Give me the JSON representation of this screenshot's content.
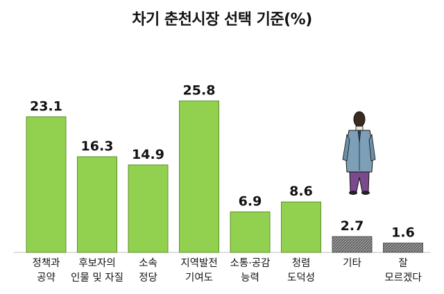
{
  "chart_data": {
    "type": "bar",
    "title": "차기 춘천시장 선택 기준(%)",
    "categories": [
      [
        "정책과",
        "공약"
      ],
      [
        "후보자의",
        "인물 및 자질"
      ],
      [
        "소속",
        "정당"
      ],
      [
        "지역발전",
        "기여도"
      ],
      [
        "소통·공감",
        "능력"
      ],
      [
        "청렴",
        "도덕성"
      ],
      [
        "기타"
      ],
      [
        "잘",
        "모르겠다"
      ]
    ],
    "values": [
      23.1,
      16.3,
      14.9,
      25.8,
      6.9,
      8.6,
      2.7,
      1.6
    ],
    "value_labels": [
      "23.1",
      "16.3",
      "14.9",
      "25.8",
      "6.9",
      "8.6",
      "2.7",
      "1.6"
    ],
    "ylim": [
      0,
      30
    ],
    "grid": false,
    "legend": "none",
    "colors": {
      "bar_main": "#92d050",
      "bar_border": "#5f8f2a",
      "bar_minor": "#8c8c8c",
      "bar_minor_border": "#555555"
    },
    "minor_categories": [
      6,
      7
    ],
    "decoration_icon": "standing-man-illustration"
  }
}
